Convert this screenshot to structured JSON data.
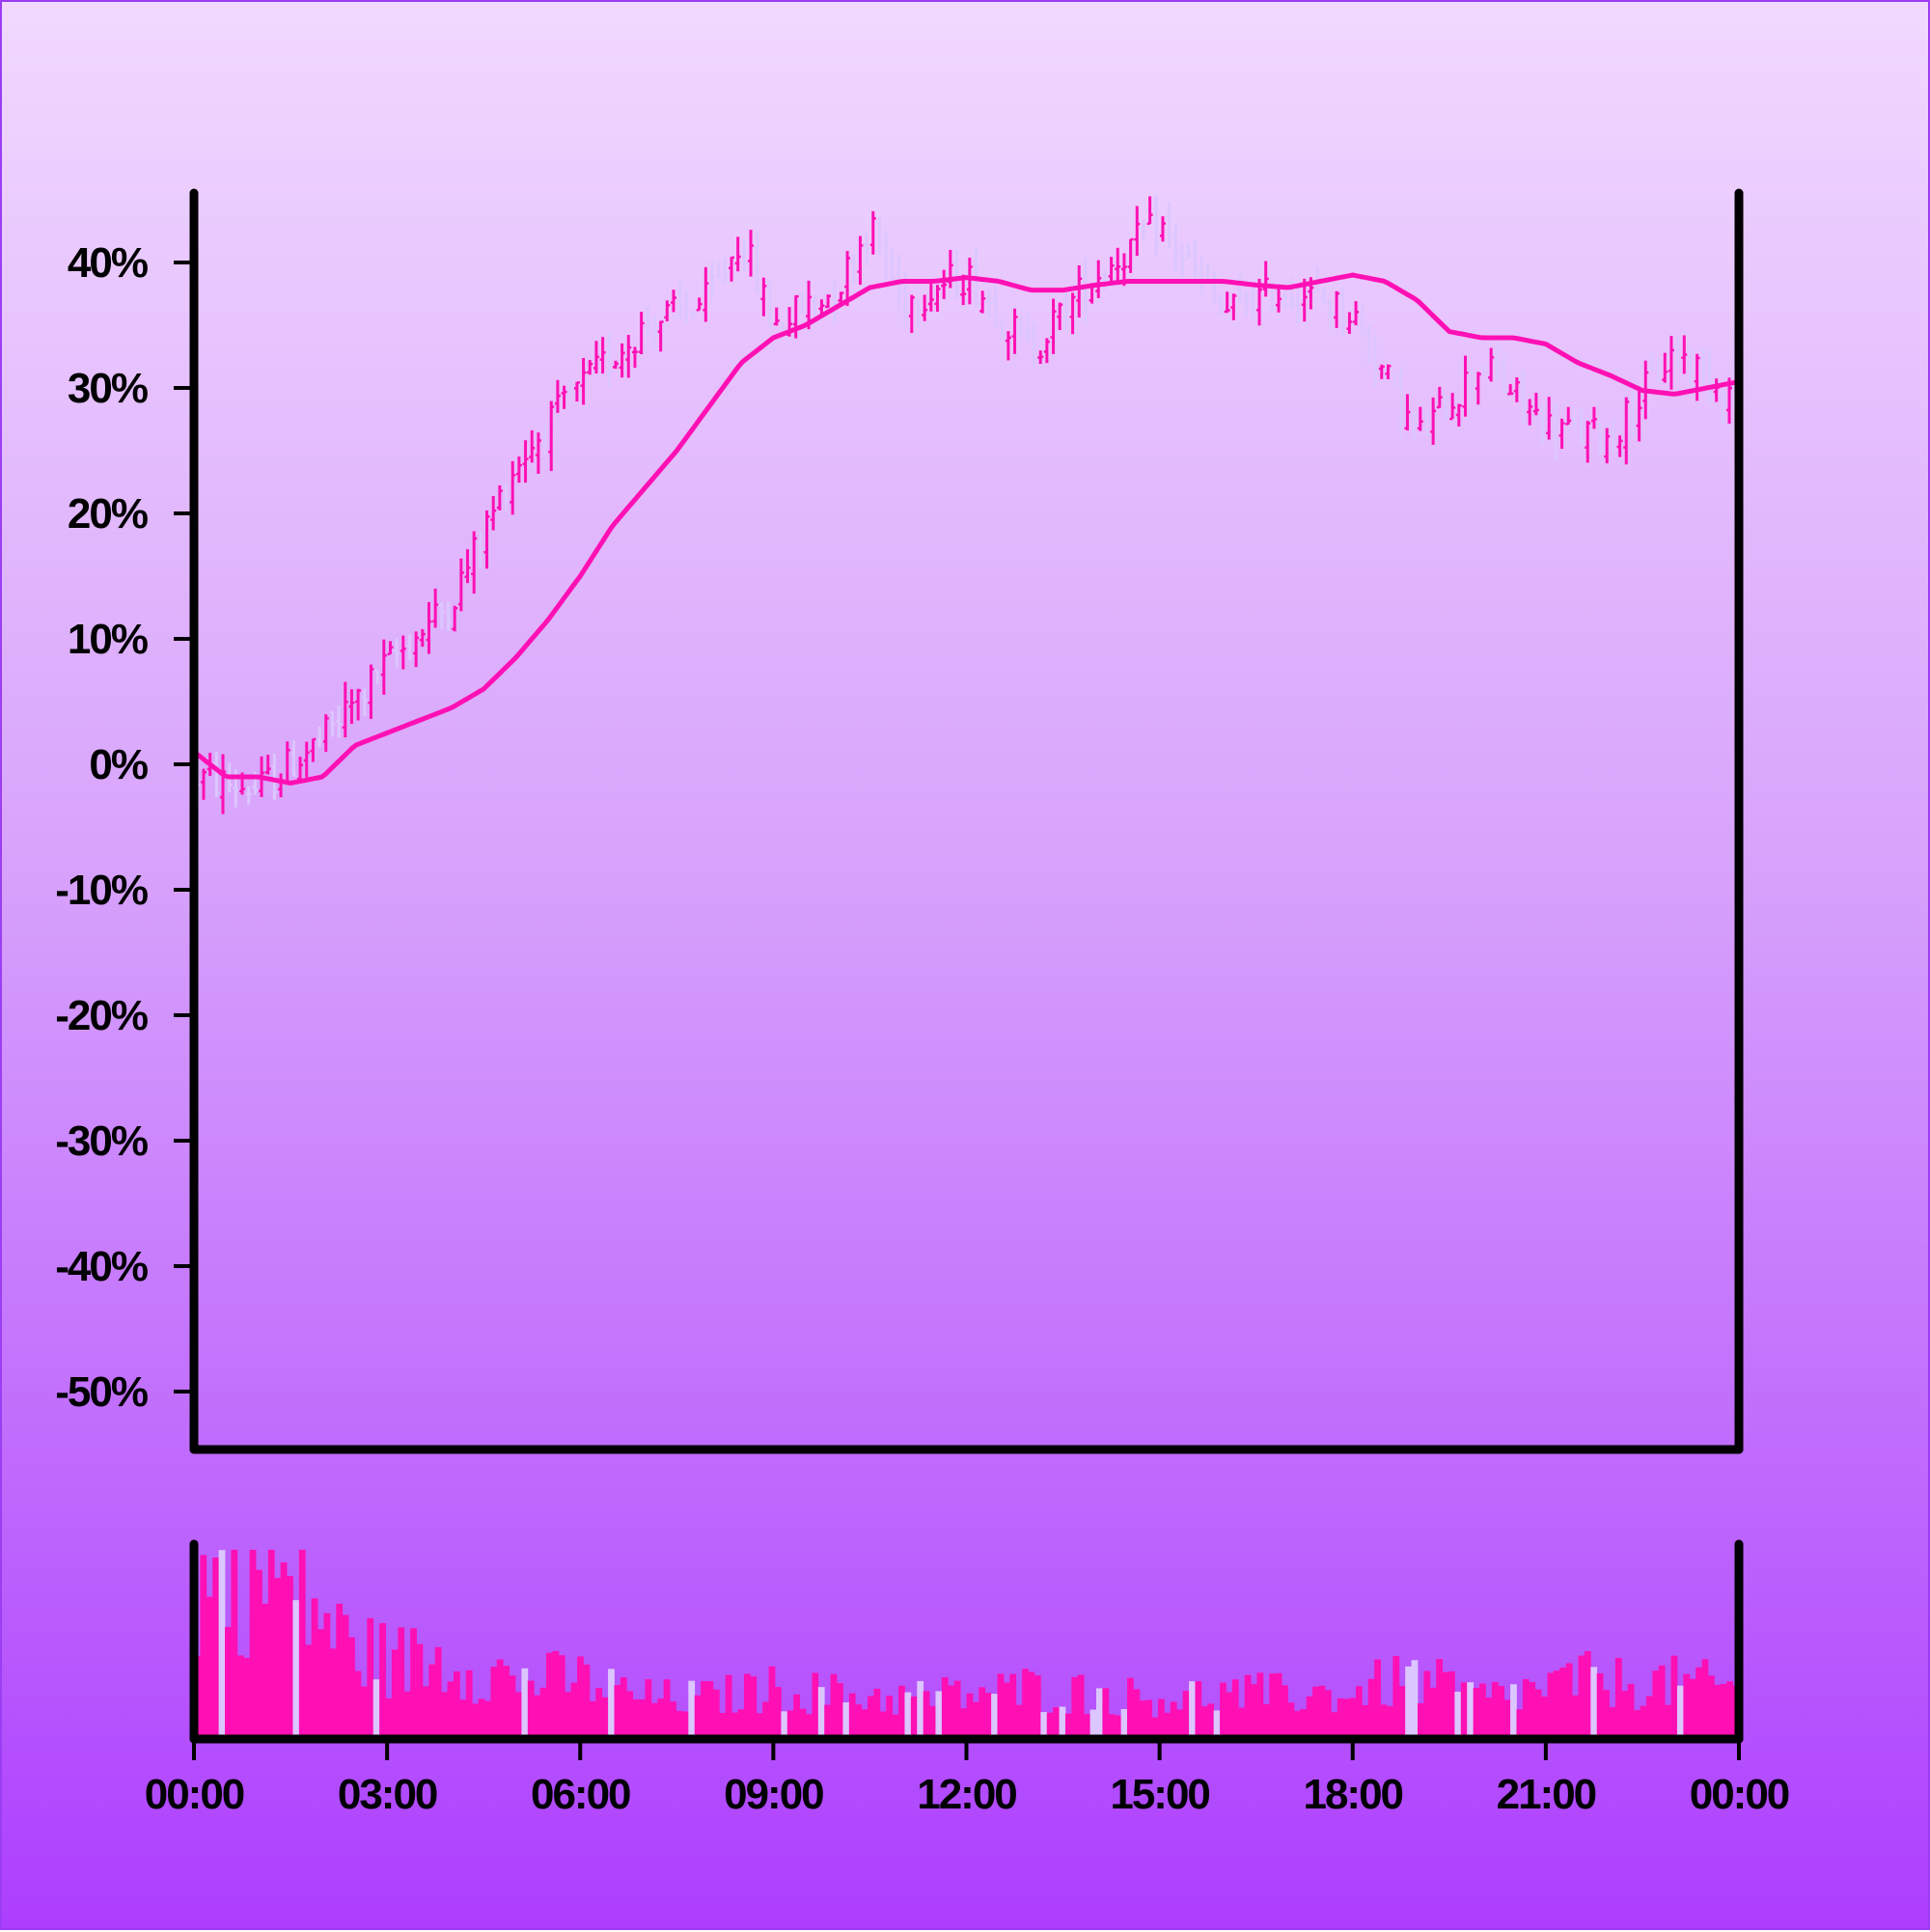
{
  "chart_data": {
    "type": "ohlc",
    "title": "",
    "xlabel": "",
    "ylabel": "",
    "colors": {
      "up": "#ff10b4",
      "down": "#dcc6ff",
      "moving_average": "#ff10b4",
      "volume": "#ff10b4",
      "axes": "#000000"
    },
    "y_axis": {
      "ticks": [
        40,
        30,
        20,
        10,
        0,
        -10,
        -20,
        -30,
        -40,
        -50
      ],
      "tick_labels": [
        "40%",
        "30%",
        "20%",
        "10%",
        "0%",
        "-10%",
        "-20%",
        "-30%",
        "-40%",
        "-50%"
      ],
      "range": [
        -55,
        45
      ]
    },
    "x_axis": {
      "range_hours": [
        0,
        24
      ],
      "ticks_hours": [
        0,
        3,
        6,
        9,
        12,
        15,
        18,
        21,
        24
      ],
      "tick_labels": [
        "00:00",
        "03:00",
        "06:00",
        "09:00",
        "12:00",
        "15:00",
        "18:00",
        "21:00",
        "00:00"
      ]
    },
    "price_series": {
      "name": "",
      "hours": [
        0.0,
        1.0,
        2.0,
        3.0,
        4.0,
        5.0,
        6.0,
        7.0,
        8.0,
        8.5,
        9.0,
        10.0,
        10.5,
        11.0,
        12.0,
        13.0,
        14.0,
        15.0,
        16.0,
        17.0,
        18.0,
        19.0,
        20.0,
        21.0,
        22.0,
        23.0,
        24.0
      ],
      "values": [
        -1,
        -2,
        2,
        8,
        13,
        24,
        30,
        35,
        37,
        42,
        35,
        38,
        43,
        37,
        39,
        33,
        39,
        43,
        36,
        38,
        36,
        26,
        32,
        27,
        26,
        33,
        29
      ]
    },
    "moving_average": {
      "name": "",
      "hours": [
        0.0,
        0.5,
        1.0,
        1.5,
        2.0,
        2.5,
        3.0,
        3.5,
        4.0,
        4.5,
        5.0,
        5.5,
        6.0,
        6.5,
        7.0,
        7.5,
        8.0,
        8.5,
        9.0,
        9.5,
        10.0,
        10.5,
        11.0,
        11.5,
        12.0,
        12.5,
        13.0,
        13.5,
        14.0,
        14.5,
        15.0,
        15.5,
        16.0,
        16.5,
        17.0,
        17.5,
        18.0,
        18.5,
        19.0,
        19.5,
        20.0,
        20.5,
        21.0,
        21.5,
        22.0,
        22.5,
        23.0,
        23.5,
        24.0
      ],
      "values": [
        1,
        -1,
        -1,
        -1.5,
        -1,
        1.5,
        2.5,
        3.5,
        4.5,
        6,
        8.5,
        11.5,
        15,
        19,
        22,
        25,
        28.5,
        32,
        34,
        35,
        36.5,
        38,
        38.5,
        38.5,
        38.8,
        38.5,
        37.8,
        37.8,
        38.2,
        38.5,
        38.5,
        38.5,
        38.5,
        38.2,
        38,
        38.5,
        39,
        38.5,
        37,
        34.5,
        34,
        34,
        33.5,
        32,
        31,
        29.8,
        29.5,
        30,
        30.5
      ]
    },
    "volume": {
      "hours": [
        0,
        1,
        2,
        2.3,
        3,
        4,
        5,
        6,
        7,
        8,
        9,
        10,
        11,
        12,
        13,
        14,
        15,
        16,
        17,
        18,
        18.5,
        19,
        20,
        21,
        21.5,
        22,
        23,
        24
      ],
      "relative": [
        0.8,
        0.9,
        0.65,
        0.5,
        0.4,
        0.4,
        0.3,
        0.3,
        0.2,
        0.2,
        0.25,
        0.22,
        0.2,
        0.22,
        0.25,
        0.22,
        0.2,
        0.22,
        0.22,
        0.22,
        0.28,
        0.3,
        0.2,
        0.25,
        0.3,
        0.28,
        0.28,
        0.25
      ],
      "bar_count": 250
    },
    "grid": false,
    "legend": "none"
  }
}
